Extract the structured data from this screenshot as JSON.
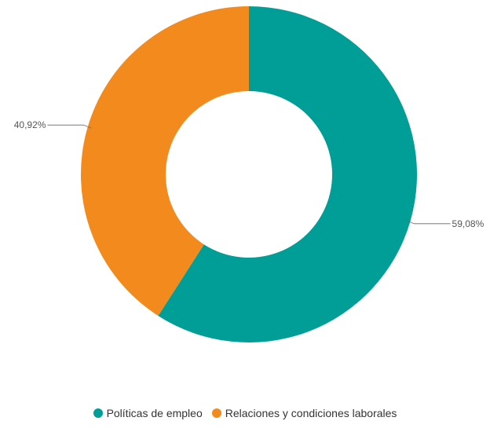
{
  "chart_data": {
    "type": "pie",
    "donut": true,
    "categories": [
      "Políticas de empleo",
      "Relaciones y condiciones laborales"
    ],
    "values": [
      59.08,
      40.92
    ],
    "labels": [
      "59,08%",
      "40,92%"
    ],
    "colors": [
      "#009e96",
      "#f28a1e"
    ],
    "legend": "bottom-center"
  }
}
